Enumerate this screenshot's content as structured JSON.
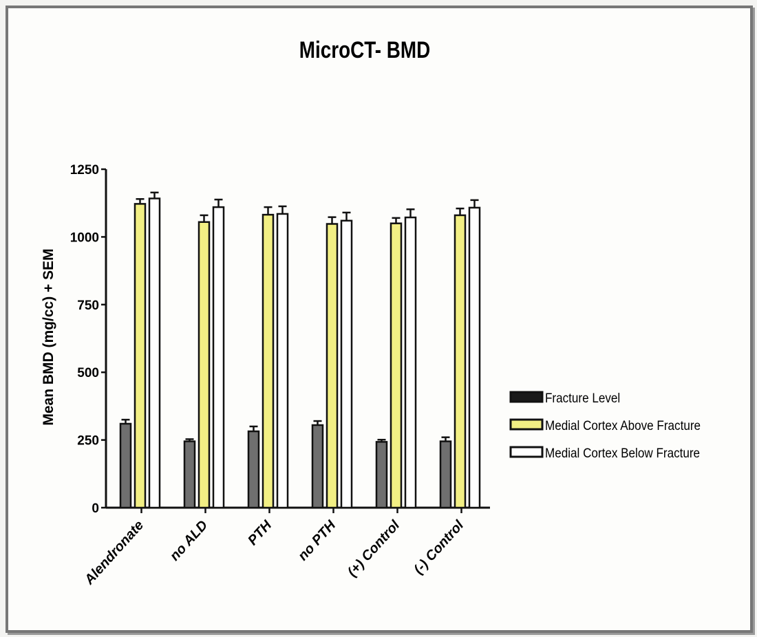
{
  "chart_data": {
    "type": "bar",
    "title": "MicroCT- BMD",
    "xlabel": "",
    "ylabel": "Mean BMD (mg/cc) + SEM",
    "ylim": [
      0,
      1250
    ],
    "yticks": [
      0,
      250,
      500,
      750,
      1000,
      1250
    ],
    "grid": false,
    "legend_position": "right",
    "categories": [
      "Alendronate",
      "no ALD",
      "PTH",
      "no PTH",
      "(+) Control",
      "(-) Control"
    ],
    "series": [
      {
        "name": "Fracture Level",
        "color": "#6f6f6f",
        "legend_color": "#1a1a1a",
        "values": [
          310,
          245,
          282,
          305,
          243,
          245
        ],
        "errors": [
          15,
          8,
          18,
          15,
          8,
          15
        ]
      },
      {
        "name": "Medial Cortex Above Fracture",
        "color": "#f2ef84",
        "legend_color": "#f2ef84",
        "values": [
          1122,
          1055,
          1082,
          1048,
          1050,
          1080
        ],
        "errors": [
          18,
          25,
          28,
          25,
          20,
          25
        ]
      },
      {
        "name": "Medial Cortex Below Fracture",
        "color": "#ffffff",
        "legend_color": "#ffffff",
        "values": [
          1142,
          1110,
          1085,
          1060,
          1072,
          1108
        ],
        "errors": [
          22,
          28,
          28,
          30,
          30,
          28
        ]
      }
    ]
  }
}
